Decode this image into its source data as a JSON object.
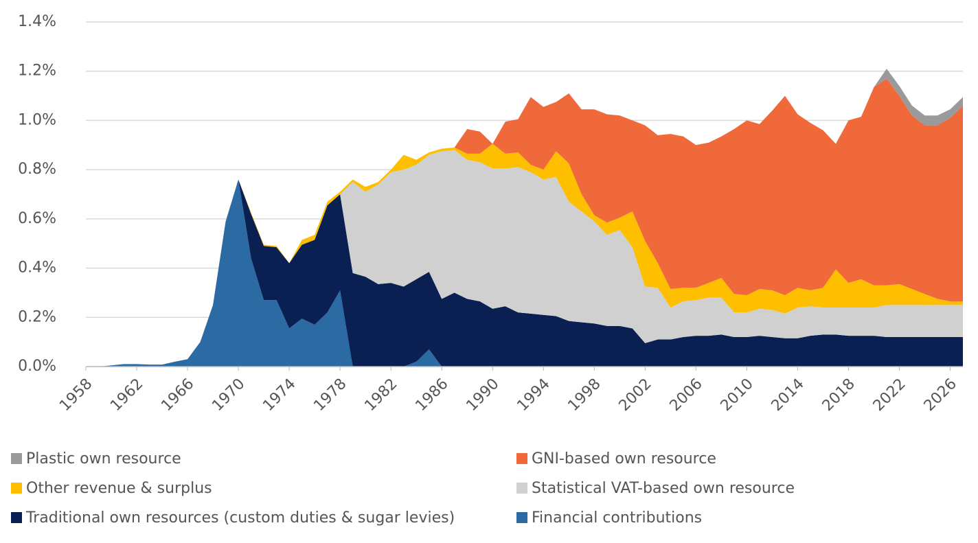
{
  "chart_data": {
    "type": "stacked-area",
    "x": [
      1958,
      1959,
      1960,
      1961,
      1962,
      1963,
      1964,
      1965,
      1966,
      1967,
      1968,
      1969,
      1970,
      1971,
      1972,
      1973,
      1974,
      1975,
      1976,
      1977,
      1978,
      1979,
      1980,
      1981,
      1982,
      1983,
      1984,
      1985,
      1986,
      1987,
      1988,
      1989,
      1990,
      1991,
      1992,
      1993,
      1994,
      1995,
      1996,
      1997,
      1998,
      1999,
      2000,
      2001,
      2002,
      2003,
      2004,
      2005,
      2006,
      2007,
      2008,
      2009,
      2010,
      2011,
      2012,
      2013,
      2014,
      2015,
      2016,
      2017,
      2018,
      2019,
      2020,
      2021,
      2022,
      2023,
      2024,
      2025,
      2026,
      2027
    ],
    "series": [
      {
        "name": "Financial contributions",
        "color": "#2b6aa3",
        "values": [
          0,
          0,
          0.005,
          0.01,
          0.01,
          0.008,
          0.008,
          0.02,
          0.03,
          0.1,
          0.25,
          0.59,
          0.76,
          0.44,
          0.27,
          0.27,
          0.155,
          0.195,
          0.17,
          0.22,
          0.31,
          0,
          0,
          0,
          0,
          0,
          0.02,
          0.07,
          0,
          0,
          0,
          0,
          0,
          0,
          0,
          0,
          0,
          0,
          0,
          0,
          0,
          0,
          0,
          0,
          0,
          0,
          0,
          0,
          0,
          0,
          0,
          0,
          0,
          0,
          0,
          0,
          0,
          0,
          0,
          0,
          0,
          0,
          0,
          0,
          0,
          0,
          0,
          0,
          0,
          0
        ]
      },
      {
        "name": "Traditional own resources (custom duties & sugar levies)",
        "color": "#0a1f52",
        "values": [
          0,
          0,
          0,
          0,
          0,
          0,
          0,
          0,
          0,
          0,
          0,
          0,
          0,
          0.18,
          0.22,
          0.215,
          0.265,
          0.3,
          0.345,
          0.435,
          0.39,
          0.38,
          0.365,
          0.335,
          0.34,
          0.325,
          0.335,
          0.315,
          0.275,
          0.3,
          0.275,
          0.265,
          0.235,
          0.245,
          0.22,
          0.215,
          0.21,
          0.205,
          0.185,
          0.18,
          0.175,
          0.165,
          0.165,
          0.155,
          0.095,
          0.11,
          0.11,
          0.12,
          0.125,
          0.125,
          0.13,
          0.12,
          0.12,
          0.125,
          0.12,
          0.115,
          0.115,
          0.125,
          0.13,
          0.13,
          0.125,
          0.125,
          0.125,
          0.12,
          0.12,
          0.12,
          0.12,
          0.12,
          0.12,
          0.12
        ]
      },
      {
        "name": "Statistical VAT-based own resource",
        "color": "#d0d0d0",
        "values": [
          0,
          0,
          0,
          0,
          0,
          0,
          0,
          0,
          0,
          0,
          0,
          0,
          0,
          0,
          0,
          0,
          0,
          0,
          0,
          0,
          0,
          0.37,
          0.345,
          0.405,
          0.45,
          0.475,
          0.465,
          0.475,
          0.6,
          0.58,
          0.565,
          0.565,
          0.57,
          0.56,
          0.59,
          0.575,
          0.55,
          0.565,
          0.485,
          0.45,
          0.415,
          0.37,
          0.39,
          0.33,
          0.23,
          0.21,
          0.13,
          0.145,
          0.145,
          0.155,
          0.15,
          0.1,
          0.1,
          0.11,
          0.11,
          0.1,
          0.125,
          0.12,
          0.11,
          0.11,
          0.115,
          0.115,
          0.115,
          0.13,
          0.13,
          0.13,
          0.13,
          0.13,
          0.13,
          0.13
        ]
      },
      {
        "name": "Other revenue & surplus",
        "color": "#fdbf00",
        "values": [
          0,
          0,
          0,
          0,
          0,
          0,
          0,
          0,
          0,
          0,
          0,
          0,
          0,
          0.005,
          0.005,
          0.005,
          0,
          0.02,
          0.02,
          0.015,
          0.01,
          0.01,
          0.02,
          0.01,
          0.01,
          0.06,
          0.02,
          0.01,
          0.01,
          0.01,
          0.025,
          0.035,
          0.1,
          0.06,
          0.06,
          0.03,
          0.04,
          0.105,
          0.155,
          0.07,
          0.025,
          0.05,
          0.05,
          0.145,
          0.185,
          0.1,
          0.075,
          0.055,
          0.05,
          0.06,
          0.08,
          0.075,
          0.07,
          0.08,
          0.08,
          0.075,
          0.08,
          0.065,
          0.08,
          0.155,
          0.1,
          0.115,
          0.09,
          0.08,
          0.085,
          0.065,
          0.045,
          0.025,
          0.015,
          0.015
        ]
      },
      {
        "name": "GNI-based own resource",
        "color": "#f0693a",
        "values": [
          0,
          0,
          0,
          0,
          0,
          0,
          0,
          0,
          0,
          0,
          0,
          0,
          0,
          0,
          0,
          0,
          0,
          0,
          0,
          0,
          0,
          0,
          0,
          0,
          0,
          0,
          0,
          0,
          0,
          0,
          0.1,
          0.09,
          0,
          0.13,
          0.135,
          0.275,
          0.255,
          0.2,
          0.285,
          0.345,
          0.43,
          0.44,
          0.415,
          0.37,
          0.47,
          0.52,
          0.63,
          0.615,
          0.58,
          0.57,
          0.575,
          0.67,
          0.71,
          0.67,
          0.73,
          0.81,
          0.705,
          0.68,
          0.64,
          0.51,
          0.66,
          0.66,
          0.805,
          0.84,
          0.765,
          0.705,
          0.685,
          0.705,
          0.745,
          0.795
        ]
      },
      {
        "name": "Plastic own resource",
        "color": "#9a9a9a",
        "values": [
          0,
          0,
          0,
          0,
          0,
          0,
          0,
          0,
          0,
          0,
          0,
          0,
          0,
          0,
          0,
          0,
          0,
          0,
          0,
          0,
          0,
          0,
          0,
          0,
          0,
          0,
          0,
          0,
          0,
          0,
          0,
          0,
          0,
          0,
          0,
          0,
          0,
          0,
          0,
          0,
          0,
          0,
          0,
          0,
          0,
          0,
          0,
          0,
          0,
          0,
          0,
          0,
          0,
          0,
          0,
          0,
          0,
          0,
          0,
          0,
          0,
          0,
          0,
          0.04,
          0.04,
          0.04,
          0.04,
          0.04,
          0.035,
          0.035
        ]
      }
    ],
    "xlim": [
      1958,
      2027
    ],
    "xticks": [
      1958,
      1962,
      1966,
      1970,
      1974,
      1978,
      1982,
      1986,
      1990,
      1994,
      1998,
      2002,
      2006,
      2010,
      2014,
      2018,
      2022,
      2026
    ],
    "ylim": [
      0,
      1.4
    ],
    "yticks": [
      {
        "value": 0,
        "label": "0.0%"
      },
      {
        "value": 0.2,
        "label": "0.2%"
      },
      {
        "value": 0.4,
        "label": "0.4%"
      },
      {
        "value": 0.6,
        "label": "0.6%"
      },
      {
        "value": 0.8,
        "label": "0.8%"
      },
      {
        "value": 1.0,
        "label": "1.0%"
      },
      {
        "value": 1.2,
        "label": "1.2%"
      },
      {
        "value": 1.4,
        "label": "1.4%"
      }
    ],
    "grid": true
  }
}
